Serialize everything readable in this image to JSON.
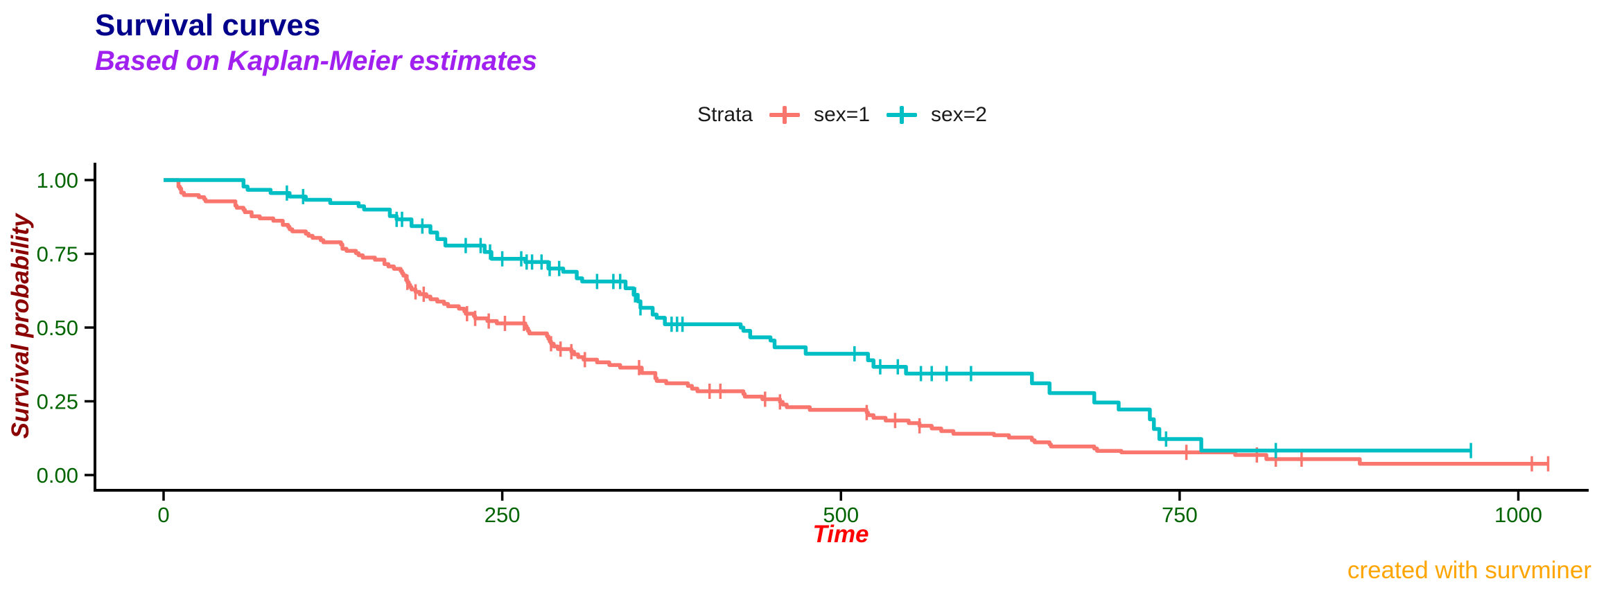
{
  "header": {
    "title": "Survival curves",
    "title_color": "#00008B",
    "subtitle": "Based on Kaplan-Meier estimates",
    "subtitle_color": "#A020F0"
  },
  "caption": {
    "text": "created with survminer",
    "color": "#FFA500"
  },
  "legend": {
    "title": "Strata",
    "title_color": "#1a1a1a",
    "entries": [
      {
        "label": "sex=1",
        "color": "#F8766D"
      },
      {
        "label": "sex=2",
        "color": "#00BFC4"
      }
    ]
  },
  "chart_data": {
    "type": "line",
    "subtype": "kaplan-meier-step-curves",
    "title": "Survival curves",
    "subtitle": "Based on Kaplan-Meier estimates",
    "caption": "created with survminer",
    "xlabel": "Time",
    "ylabel": "Survival probability",
    "xlabel_color": "#FF0000",
    "ylabel_color": "#8B0000",
    "tick_label_color": "#006400",
    "axis_color": "#000000",
    "grid": false,
    "legend_position": "top",
    "legend_title": "Strata",
    "xlim": [
      0,
      1022
    ],
    "ylim": [
      0,
      1.0
    ],
    "x_ticks": [
      {
        "value": 0,
        "label": "0"
      },
      {
        "value": 250,
        "label": "250"
      },
      {
        "value": 500,
        "label": "500"
      },
      {
        "value": 750,
        "label": "750"
      },
      {
        "value": 1000,
        "label": "1000"
      }
    ],
    "y_ticks": [
      {
        "value": 0.0,
        "label": "0.00"
      },
      {
        "value": 0.25,
        "label": "0.25"
      },
      {
        "value": 0.5,
        "label": "0.50"
      },
      {
        "value": 0.75,
        "label": "0.75"
      },
      {
        "value": 1.0,
        "label": "1.00"
      }
    ],
    "series": [
      {
        "name": "sex=1",
        "color": "#F8766D",
        "steps": [
          [
            0,
            1.0
          ],
          [
            11,
            0.978
          ],
          [
            12,
            0.971
          ],
          [
            13,
            0.957
          ],
          [
            15,
            0.949
          ],
          [
            26,
            0.942
          ],
          [
            30,
            0.935
          ],
          [
            31,
            0.928
          ],
          [
            53,
            0.913
          ],
          [
            54,
            0.906
          ],
          [
            59,
            0.899
          ],
          [
            60,
            0.891
          ],
          [
            65,
            0.877
          ],
          [
            71,
            0.87
          ],
          [
            81,
            0.862
          ],
          [
            88,
            0.848
          ],
          [
            92,
            0.841
          ],
          [
            93,
            0.833
          ],
          [
            95,
            0.826
          ],
          [
            105,
            0.818
          ],
          [
            107,
            0.811
          ],
          [
            110,
            0.804
          ],
          [
            116,
            0.796
          ],
          [
            118,
            0.789
          ],
          [
            131,
            0.782
          ],
          [
            132,
            0.767
          ],
          [
            135,
            0.76
          ],
          [
            142,
            0.752
          ],
          [
            144,
            0.745
          ],
          [
            147,
            0.737
          ],
          [
            156,
            0.73
          ],
          [
            163,
            0.715
          ],
          [
            166,
            0.707
          ],
          [
            170,
            0.699
          ],
          [
            175,
            0.692
          ],
          [
            176,
            0.684
          ],
          [
            177,
            0.676
          ],
          [
            179,
            0.661
          ],
          [
            180,
            0.653
          ],
          [
            181,
            0.645
          ],
          [
            182,
            0.637
          ],
          [
            183,
            0.629
          ],
          [
            186,
            0.621
          ],
          [
            189,
            0.613
          ],
          [
            194,
            0.605
          ],
          [
            197,
            0.596
          ],
          [
            202,
            0.588
          ],
          [
            207,
            0.58
          ],
          [
            210,
            0.572
          ],
          [
            218,
            0.564
          ],
          [
            222,
            0.555
          ],
          [
            223,
            0.547
          ],
          [
            229,
            0.539
          ],
          [
            230,
            0.531
          ],
          [
            239,
            0.522
          ],
          [
            246,
            0.514
          ],
          [
            267,
            0.505
          ],
          [
            268,
            0.497
          ],
          [
            269,
            0.488
          ],
          [
            270,
            0.48
          ],
          [
            283,
            0.471
          ],
          [
            284,
            0.462
          ],
          [
            285,
            0.453
          ],
          [
            286,
            0.445
          ],
          [
            288,
            0.436
          ],
          [
            291,
            0.427
          ],
          [
            301,
            0.418
          ],
          [
            303,
            0.409
          ],
          [
            306,
            0.4
          ],
          [
            310,
            0.391
          ],
          [
            320,
            0.382
          ],
          [
            329,
            0.373
          ],
          [
            337,
            0.364
          ],
          [
            353,
            0.346
          ],
          [
            363,
            0.328
          ],
          [
            364,
            0.319
          ],
          [
            371,
            0.311
          ],
          [
            387,
            0.302
          ],
          [
            390,
            0.293
          ],
          [
            394,
            0.284
          ],
          [
            428,
            0.275
          ],
          [
            429,
            0.266
          ],
          [
            442,
            0.257
          ],
          [
            455,
            0.248
          ],
          [
            457,
            0.239
          ],
          [
            460,
            0.23
          ],
          [
            477,
            0.221
          ],
          [
            519,
            0.212
          ],
          [
            520,
            0.203
          ],
          [
            524,
            0.194
          ],
          [
            533,
            0.185
          ],
          [
            550,
            0.176
          ],
          [
            558,
            0.167
          ],
          [
            567,
            0.158
          ],
          [
            574,
            0.149
          ],
          [
            583,
            0.14
          ],
          [
            613,
            0.135
          ],
          [
            624,
            0.127
          ],
          [
            641,
            0.118
          ],
          [
            643,
            0.111
          ],
          [
            654,
            0.104
          ],
          [
            655,
            0.097
          ],
          [
            687,
            0.09
          ],
          [
            689,
            0.082
          ],
          [
            707,
            0.077
          ],
          [
            791,
            0.068
          ],
          [
            814,
            0.054
          ],
          [
            883,
            0.038
          ],
          [
            1022,
            0.038
          ]
        ],
        "censor_times": [
          180,
          186,
          192,
          224,
          230,
          240,
          252,
          266,
          286,
          293,
          301,
          311,
          351,
          403,
          411,
          444,
          455,
          519,
          540,
          558,
          755,
          807,
          821,
          840,
          1010,
          1022
        ]
      },
      {
        "name": "sex=2",
        "color": "#00BFC4",
        "steps": [
          [
            0,
            1.0
          ],
          [
            59,
            0.978
          ],
          [
            62,
            0.967
          ],
          [
            79,
            0.956
          ],
          [
            93,
            0.944
          ],
          [
            105,
            0.933
          ],
          [
            123,
            0.922
          ],
          [
            144,
            0.911
          ],
          [
            148,
            0.9
          ],
          [
            167,
            0.878
          ],
          [
            172,
            0.867
          ],
          [
            183,
            0.844
          ],
          [
            197,
            0.822
          ],
          [
            202,
            0.8
          ],
          [
            208,
            0.778
          ],
          [
            237,
            0.756
          ],
          [
            242,
            0.733
          ],
          [
            267,
            0.722
          ],
          [
            284,
            0.7
          ],
          [
            295,
            0.689
          ],
          [
            305,
            0.667
          ],
          [
            309,
            0.656
          ],
          [
            341,
            0.633
          ],
          [
            347,
            0.611
          ],
          [
            350,
            0.589
          ],
          [
            352,
            0.567
          ],
          [
            361,
            0.544
          ],
          [
            364,
            0.533
          ],
          [
            370,
            0.511
          ],
          [
            426,
            0.5
          ],
          [
            428,
            0.489
          ],
          [
            433,
            0.467
          ],
          [
            448,
            0.456
          ],
          [
            451,
            0.433
          ],
          [
            474,
            0.411
          ],
          [
            520,
            0.389
          ],
          [
            524,
            0.367
          ],
          [
            548,
            0.344
          ],
          [
            641,
            0.311
          ],
          [
            654,
            0.278
          ],
          [
            687,
            0.246
          ],
          [
            705,
            0.222
          ],
          [
            728,
            0.189
          ],
          [
            731,
            0.156
          ],
          [
            735,
            0.122
          ],
          [
            766,
            0.083
          ],
          [
            965,
            0.083
          ]
        ],
        "censor_times": [
          91,
          103,
          172,
          176,
          191,
          223,
          234,
          241,
          250,
          264,
          268,
          272,
          279,
          285,
          292,
          320,
          332,
          337,
          348,
          352,
          375,
          379,
          383,
          510,
          529,
          542,
          559,
          567,
          578,
          596,
          740,
          821,
          965
        ]
      }
    ]
  }
}
